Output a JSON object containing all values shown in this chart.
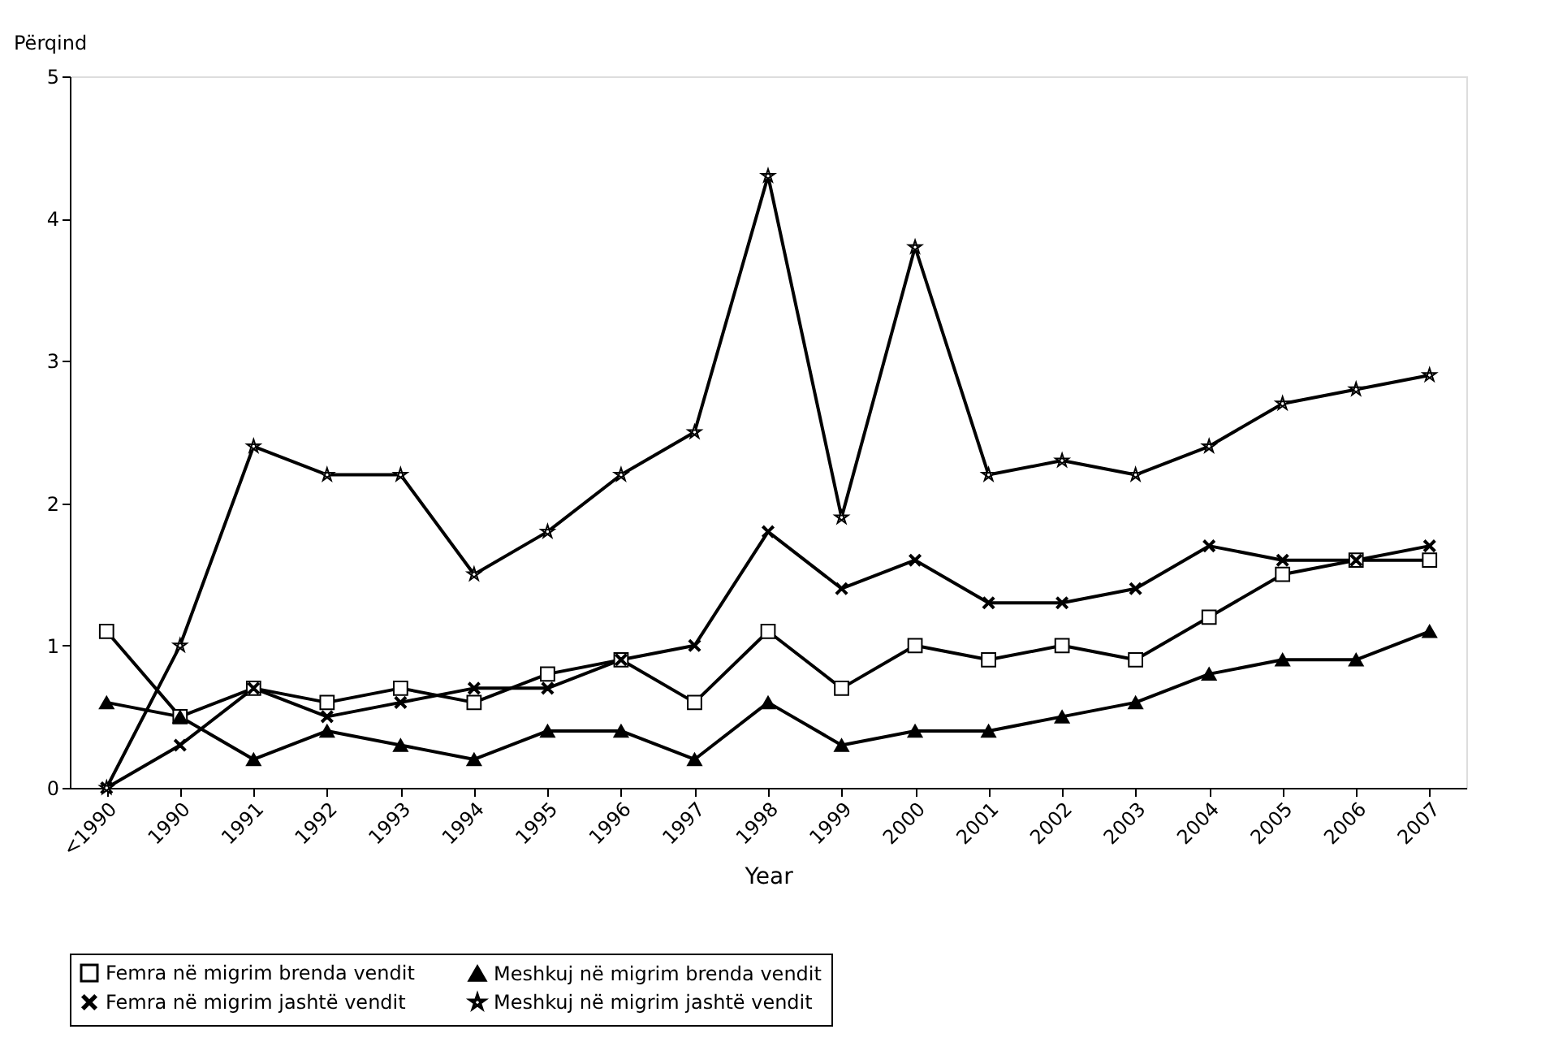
{
  "chart_data": {
    "type": "line",
    "xlabel": "Year",
    "ylabel": "Përqind",
    "categories": [
      "<1990",
      "1990",
      "1991",
      "1992",
      "1993",
      "1994",
      "1995",
      "1996",
      "1997",
      "1998",
      "1999",
      "2000",
      "2001",
      "2002",
      "2003",
      "2004",
      "2005",
      "2006",
      "2007"
    ],
    "series": [
      {
        "name": "Femra në migrim brenda vendit",
        "color": "#000000",
        "marker": "square",
        "values": [
          1.1,
          0.5,
          0.7,
          0.6,
          0.7,
          0.6,
          0.8,
          0.9,
          0.6,
          1.1,
          0.7,
          1.0,
          0.9,
          1.0,
          0.9,
          1.2,
          1.5,
          1.6,
          1.6
        ]
      },
      {
        "name": "Meshkuj në migrim brenda vendit",
        "color": "#000000",
        "marker": "triangle",
        "values": [
          0.6,
          0.5,
          0.2,
          0.4,
          0.3,
          0.2,
          0.4,
          0.4,
          0.2,
          0.6,
          0.3,
          0.4,
          0.4,
          0.5,
          0.6,
          0.8,
          0.9,
          0.9,
          1.1
        ]
      },
      {
        "name": "Femra në migrim jashtë vendit",
        "color": "#000000",
        "marker": "cross",
        "values": [
          0,
          0.3,
          0.7,
          0.5,
          0.6,
          0.7,
          0.7,
          0.9,
          1.0,
          1.8,
          1.4,
          1.6,
          1.3,
          1.3,
          1.4,
          1.7,
          1.6,
          1.6,
          1.7
        ]
      },
      {
        "name": "Meshkuj në migrim jashtë vendit",
        "color": "#000000",
        "marker": "star",
        "values": [
          0,
          1.0,
          2.4,
          2.2,
          2.2,
          1.5,
          1.8,
          2.2,
          2.5,
          4.3,
          1.9,
          3.8,
          2.2,
          2.3,
          2.2,
          2.4,
          2.7,
          2.8,
          2.9
        ]
      }
    ],
    "ylim": [
      0,
      5
    ],
    "yticks": [
      0,
      1,
      2,
      3,
      4,
      5
    ],
    "grid": false,
    "legend": "bottom",
    "line_style": "solid"
  }
}
